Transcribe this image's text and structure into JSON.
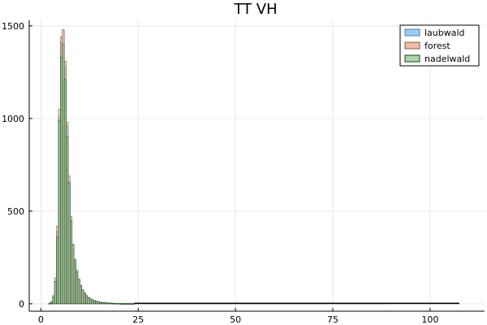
{
  "chart_data": {
    "type": "bar",
    "title": "TT VH",
    "xlabel": "",
    "ylabel": "",
    "xlim": [
      -3,
      114
    ],
    "ylim": [
      -40,
      1530
    ],
    "xticks": [
      0,
      25,
      50,
      75,
      100
    ],
    "yticks": [
      0,
      500,
      1000,
      1500
    ],
    "grid": true,
    "legend_position": "top-right",
    "bin_width": 0.5,
    "series": [
      {
        "name": "laubwald",
        "color": "#7fbfef",
        "stroke": "#4a7fa6",
        "bin_start": 2.0,
        "values": [
          2,
          6,
          30,
          110,
          390,
          1010,
          1410,
          1475,
          1280,
          960,
          660,
          440,
          300,
          215,
          160,
          120,
          90,
          68,
          52,
          40,
          32,
          25,
          20,
          16,
          13,
          10,
          8,
          7,
          6,
          5,
          4,
          4,
          3,
          3,
          2,
          2,
          2,
          1,
          1,
          1,
          1,
          1,
          1,
          1
        ]
      },
      {
        "name": "forest",
        "color": "#ecad94",
        "stroke": "#8e5a45",
        "bin_start": 2.0,
        "values": [
          3,
          10,
          45,
          140,
          420,
          1050,
          1440,
          1480,
          1310,
          980,
          690,
          470,
          320,
          230,
          170,
          125,
          95,
          72,
          55,
          42,
          33,
          26,
          21,
          17,
          13,
          10,
          8,
          7,
          6,
          5,
          4,
          4,
          3,
          3,
          2,
          2,
          2,
          1,
          1,
          1,
          1,
          1,
          1,
          1
        ]
      },
      {
        "name": "nadelwald",
        "color": "#99c794",
        "stroke": "#184d1a",
        "bin_start": 2.0,
        "values": [
          2,
          8,
          38,
          120,
          360,
          990,
          1330,
          1400,
          1210,
          900,
          650,
          450,
          320,
          240,
          180,
          135,
          100,
          75,
          58,
          44,
          34,
          27,
          22,
          17,
          14,
          11,
          9,
          7,
          6,
          5,
          4,
          4,
          3,
          3,
          2,
          2,
          2,
          1,
          1,
          1,
          1,
          1,
          1,
          1
        ]
      }
    ],
    "tail_x_end": 107.5
  }
}
